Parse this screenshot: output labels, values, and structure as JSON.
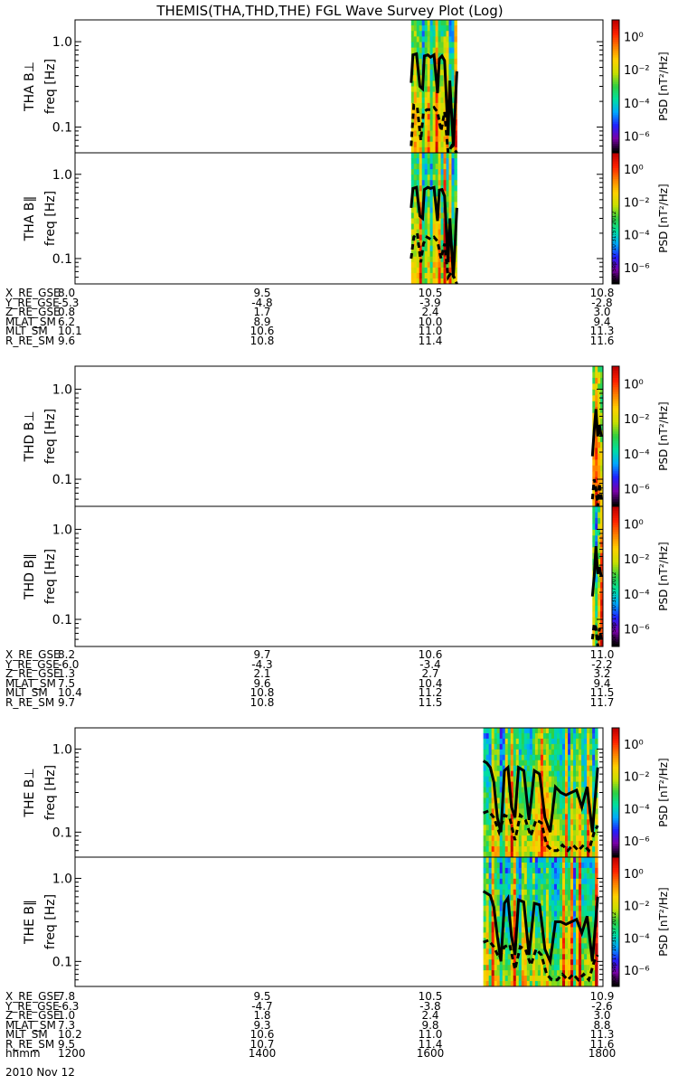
{
  "title": "THEMIS(THA,THD,THE) FGL Wave Survey Plot (Log)",
  "date_label": "2010 Nov 12",
  "stamp": "Mon Sep 17 10:31:57 2012",
  "colors": {
    "bg": "#ffffff",
    "axis": "#000000",
    "colormap": [
      "#000000",
      "#7a00a8",
      "#2020ff",
      "#00a8ff",
      "#00e0a0",
      "#30d040",
      "#c8e000",
      "#ffd000",
      "#ff8000",
      "#ff2000",
      "#c00000"
    ]
  },
  "chart_data": [
    {
      "type": "heatmap",
      "panel": "THA B⊥",
      "ylabel_main": "THA B⊥",
      "ylabel_sub": "freq [Hz]",
      "yscale": "log",
      "ylim": [
        0.05,
        1.8
      ],
      "yticks": [
        "1.0",
        "0.1"
      ],
      "xlim": [
        1200,
        1800
      ],
      "data_start": 1582,
      "data_end": 1634,
      "colorbar": {
        "label": "PSD [nT²/Hz]",
        "ticks": [
          "10⁰",
          "10⁻²",
          "10⁻⁴",
          "10⁻⁶"
        ],
        "scale": "log",
        "range": [
          -7,
          1
        ]
      },
      "lines": [
        {
          "style": "solid",
          "x": [
            1582,
            1584,
            1588,
            1592,
            1595,
            1597,
            1601,
            1604,
            1608,
            1612,
            1614,
            1617,
            1620,
            1624,
            1626,
            1630,
            1634
          ],
          "y": [
            0.33,
            0.7,
            0.72,
            0.3,
            0.28,
            0.68,
            0.7,
            0.66,
            0.7,
            0.25,
            0.63,
            0.68,
            0.6,
            0.08,
            0.35,
            0.06,
            0.45
          ]
        },
        {
          "style": "dashed",
          "x": [
            1582,
            1585,
            1589,
            1593,
            1596,
            1600,
            1604,
            1608,
            1612,
            1616,
            1620,
            1624,
            1628,
            1634
          ],
          "y": [
            0.06,
            0.18,
            0.17,
            0.07,
            0.15,
            0.16,
            0.16,
            0.17,
            0.15,
            0.09,
            0.15,
            0.05,
            0.06,
            0.05
          ]
        }
      ]
    },
    {
      "type": "heatmap",
      "panel": "THA B∥",
      "ylabel_main": "THA B∥",
      "ylabel_sub": "freq [Hz]",
      "yscale": "log",
      "ylim": [
        0.05,
        1.8
      ],
      "yticks": [
        "1.0",
        "0.1"
      ],
      "xlim": [
        1200,
        1800
      ],
      "data_start": 1582,
      "data_end": 1634,
      "colorbar": {
        "label": "PSD [nT²/Hz]",
        "ticks": [
          "10⁰",
          "10⁻²",
          "10⁻⁴",
          "10⁻⁶"
        ],
        "scale": "log",
        "range": [
          -7,
          1
        ]
      },
      "lines": [
        {
          "style": "solid",
          "x": [
            1582,
            1584,
            1588,
            1592,
            1595,
            1597,
            1601,
            1604,
            1608,
            1612,
            1614,
            1617,
            1620,
            1624,
            1626,
            1630,
            1634
          ],
          "y": [
            0.4,
            0.68,
            0.7,
            0.32,
            0.3,
            0.66,
            0.7,
            0.68,
            0.7,
            0.28,
            0.65,
            0.66,
            0.55,
            0.09,
            0.3,
            0.06,
            0.4
          ]
        },
        {
          "style": "dashed",
          "x": [
            1582,
            1585,
            1589,
            1593,
            1596,
            1600,
            1604,
            1608,
            1612,
            1616,
            1620,
            1624,
            1628,
            1634
          ],
          "y": [
            0.1,
            0.18,
            0.2,
            0.09,
            0.15,
            0.18,
            0.17,
            0.18,
            0.16,
            0.1,
            0.15,
            0.06,
            0.07,
            0.05
          ]
        }
      ]
    },
    {
      "type": "heatmap",
      "panel": "THD B⊥",
      "ylabel_main": "THD B⊥",
      "ylabel_sub": "freq [Hz]",
      "yscale": "log",
      "ylim": [
        0.05,
        1.8
      ],
      "yticks": [
        "1.0",
        "0.1"
      ],
      "xlim": [
        1200,
        1800
      ],
      "data_start": 1788,
      "data_end": 1800,
      "colorbar": {
        "label": "PSD [nT²/Hz]",
        "ticks": [
          "10⁰",
          "10⁻²",
          "10⁻⁴",
          "10⁻⁶"
        ],
        "scale": "log",
        "range": [
          -7,
          1
        ]
      },
      "lines": [
        {
          "style": "solid",
          "x": [
            1788,
            1790,
            1792,
            1794,
            1796,
            1798
          ],
          "y": [
            0.18,
            0.35,
            0.6,
            0.3,
            0.4,
            0.3
          ]
        },
        {
          "style": "dashed",
          "x": [
            1788,
            1790,
            1792,
            1794,
            1796,
            1798
          ],
          "y": [
            0.06,
            0.1,
            0.08,
            0.05,
            0.09,
            0.06
          ]
        }
      ]
    },
    {
      "type": "heatmap",
      "panel": "THD B∥",
      "ylabel_main": "THD B∥",
      "ylabel_sub": "freq [Hz]",
      "yscale": "log",
      "ylim": [
        0.05,
        1.8
      ],
      "yticks": [
        "1.0",
        "0.1"
      ],
      "xlim": [
        1200,
        1800
      ],
      "data_start": 1788,
      "data_end": 1800,
      "colorbar": {
        "label": "PSD [nT²/Hz]",
        "ticks": [
          "10⁰",
          "10⁻²",
          "10⁻⁴",
          "10⁻⁶"
        ],
        "scale": "log",
        "range": [
          -7,
          1
        ]
      },
      "lines": [
        {
          "style": "solid",
          "x": [
            1788,
            1790,
            1792,
            1794,
            1796,
            1798
          ],
          "y": [
            0.18,
            0.3,
            0.65,
            0.32,
            0.38,
            0.3
          ]
        },
        {
          "style": "dashed",
          "x": [
            1788,
            1790,
            1792,
            1794,
            1796,
            1798
          ],
          "y": [
            0.06,
            0.09,
            0.08,
            0.05,
            0.08,
            0.06
          ]
        }
      ]
    },
    {
      "type": "heatmap",
      "panel": "THE B⊥",
      "ylabel_main": "THE B⊥",
      "ylabel_sub": "freq [Hz]",
      "yscale": "log",
      "ylim": [
        0.05,
        1.8
      ],
      "yticks": [
        "1.0",
        "0.1"
      ],
      "xlim": [
        1200,
        1800
      ],
      "data_start": 1664,
      "data_end": 1794,
      "colorbar": {
        "label": "PSD [nT²/Hz]",
        "ticks": [
          "10⁰",
          "10⁻²",
          "10⁻⁴",
          "10⁻⁶"
        ],
        "scale": "log",
        "range": [
          -7,
          1
        ]
      },
      "lines": [
        {
          "style": "solid",
          "x": [
            1664,
            1668,
            1672,
            1676,
            1680,
            1684,
            1688,
            1692,
            1696,
            1700,
            1704,
            1710,
            1716,
            1722,
            1728,
            1734,
            1740,
            1746,
            1752,
            1758,
            1764,
            1770,
            1776,
            1782,
            1788,
            1794
          ],
          "y": [
            0.72,
            0.68,
            0.6,
            0.4,
            0.15,
            0.1,
            0.55,
            0.6,
            0.2,
            0.15,
            0.6,
            0.55,
            0.14,
            0.55,
            0.5,
            0.15,
            0.1,
            0.35,
            0.3,
            0.28,
            0.3,
            0.32,
            0.2,
            0.35,
            0.1,
            0.6
          ]
        },
        {
          "style": "dashed",
          "x": [
            1664,
            1670,
            1676,
            1682,
            1688,
            1694,
            1700,
            1706,
            1712,
            1718,
            1724,
            1730,
            1736,
            1742,
            1748,
            1754,
            1760,
            1766,
            1772,
            1778,
            1784,
            1790,
            1794
          ],
          "y": [
            0.17,
            0.18,
            0.15,
            0.1,
            0.16,
            0.15,
            0.08,
            0.16,
            0.14,
            0.09,
            0.14,
            0.13,
            0.07,
            0.06,
            0.06,
            0.07,
            0.06,
            0.07,
            0.06,
            0.07,
            0.06,
            0.1,
            0.12
          ]
        }
      ]
    },
    {
      "type": "heatmap",
      "panel": "THE B∥",
      "ylabel_main": "THE B∥",
      "ylabel_sub": "freq [Hz]",
      "yscale": "log",
      "ylim": [
        0.05,
        1.8
      ],
      "yticks": [
        "1.0",
        "0.1"
      ],
      "xlim": [
        1200,
        1800
      ],
      "data_start": 1664,
      "data_end": 1794,
      "colorbar": {
        "label": "PSD [nT²/Hz]",
        "ticks": [
          "10⁰",
          "10⁻²",
          "10⁻⁴",
          "10⁻⁶"
        ],
        "scale": "log",
        "range": [
          -7,
          1
        ]
      },
      "lines": [
        {
          "style": "solid",
          "x": [
            1664,
            1668,
            1672,
            1676,
            1680,
            1684,
            1688,
            1692,
            1696,
            1700,
            1704,
            1710,
            1716,
            1722,
            1728,
            1734,
            1740,
            1746,
            1752,
            1758,
            1764,
            1770,
            1776,
            1782,
            1788,
            1794
          ],
          "y": [
            0.7,
            0.66,
            0.62,
            0.45,
            0.2,
            0.1,
            0.5,
            0.58,
            0.2,
            0.12,
            0.55,
            0.52,
            0.12,
            0.5,
            0.48,
            0.14,
            0.1,
            0.3,
            0.3,
            0.28,
            0.3,
            0.32,
            0.22,
            0.35,
            0.1,
            0.6
          ]
        },
        {
          "style": "dashed",
          "x": [
            1664,
            1670,
            1676,
            1682,
            1688,
            1694,
            1700,
            1706,
            1712,
            1718,
            1724,
            1730,
            1736,
            1742,
            1748,
            1754,
            1760,
            1766,
            1772,
            1778,
            1784,
            1790,
            1794
          ],
          "y": [
            0.17,
            0.18,
            0.15,
            0.11,
            0.15,
            0.16,
            0.08,
            0.15,
            0.14,
            0.09,
            0.14,
            0.12,
            0.07,
            0.06,
            0.06,
            0.07,
            0.06,
            0.07,
            0.06,
            0.07,
            0.06,
            0.1,
            0.12
          ]
        }
      ]
    }
  ],
  "orbit_blocks": [
    {
      "rows": [
        {
          "label": "X_RE_GSE",
          "values": [
            "8.0",
            "9.5",
            "10.5",
            "10.8"
          ]
        },
        {
          "label": "Y_RE_GSE",
          "values": [
            "-5.3",
            "-4.8",
            "-3.9",
            "-2.8"
          ]
        },
        {
          "label": "Z_RE_GSE",
          "values": [
            "0.8",
            "1.7",
            "2.4",
            "3.0"
          ]
        },
        {
          "label": "MLAT_SM",
          "values": [
            "6.2",
            "8.9",
            "10.0",
            "9.4"
          ]
        },
        {
          "label": "MLT_SM",
          "values": [
            "10.1",
            "10.6",
            "11.0",
            "11.3"
          ]
        },
        {
          "label": "R_RE_SM",
          "values": [
            "9.6",
            "10.8",
            "11.4",
            "11.6"
          ]
        }
      ]
    },
    {
      "rows": [
        {
          "label": "X_RE_GSE",
          "values": [
            "8.2",
            "9.7",
            "10.6",
            "11.0"
          ]
        },
        {
          "label": "Y_RE_GSE",
          "values": [
            "-6.0",
            "-4.3",
            "-3.4",
            "-2.2"
          ]
        },
        {
          "label": "Z_RE_GSE",
          "values": [
            "1.3",
            "2.1",
            "2.7",
            "3.2"
          ]
        },
        {
          "label": "MLAT_SM",
          "values": [
            "7.5",
            "9.6",
            "10.4",
            "9.4"
          ]
        },
        {
          "label": "MLT_SM",
          "values": [
            "10.4",
            "10.8",
            "11.2",
            "11.5"
          ]
        },
        {
          "label": "R_RE_SM",
          "values": [
            "9.7",
            "10.8",
            "11.5",
            "11.7"
          ]
        }
      ]
    },
    {
      "rows": [
        {
          "label": "X_RE_GSE",
          "values": [
            "7.8",
            "9.5",
            "10.5",
            "10.9"
          ]
        },
        {
          "label": "Y_RE_GSE",
          "values": [
            "-6.3",
            "-4.7",
            "-3.8",
            "-2.6"
          ]
        },
        {
          "label": "Z_RE_GSE",
          "values": [
            "1.0",
            "1.8",
            "2.4",
            "3.0"
          ]
        },
        {
          "label": "MLAT_SM",
          "values": [
            "7.3",
            "9.3",
            "9.8",
            "8.8"
          ]
        },
        {
          "label": "MLT_SM",
          "values": [
            "10.2",
            "10.6",
            "11.0",
            "11.3"
          ]
        },
        {
          "label": "R_RE_SM",
          "values": [
            "9.5",
            "10.7",
            "11.4",
            "11.6"
          ]
        },
        {
          "label": "hhmm",
          "values": [
            "1200",
            "1400",
            "1600",
            "1800"
          ]
        }
      ]
    }
  ]
}
